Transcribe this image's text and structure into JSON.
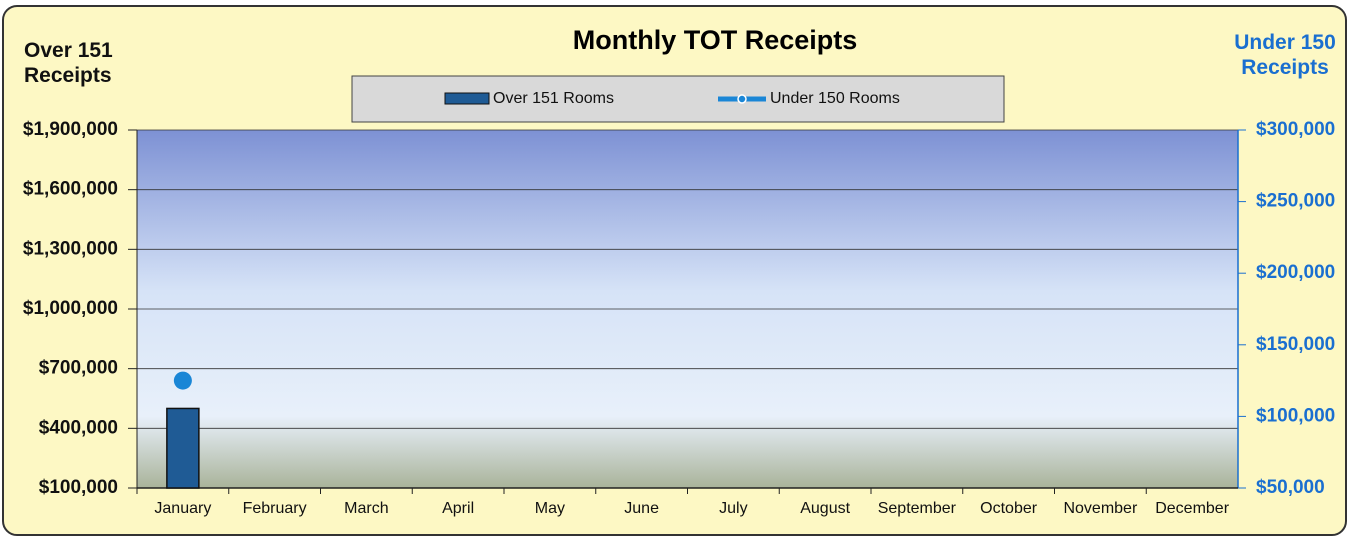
{
  "chart_data": {
    "type": "bar_line",
    "title": "Monthly TOT  Receipts",
    "ylabel": "Over 151 Receipts",
    "y2label": "Under 150 Receipts",
    "categories": [
      "January",
      "February",
      "March",
      "April",
      "May",
      "June",
      "July",
      "August",
      "September",
      "October",
      "November",
      "December"
    ],
    "series": [
      {
        "name": "Over 151 Rooms",
        "type": "bar",
        "color": "#1f5b95",
        "values": [
          500000,
          null,
          null,
          null,
          null,
          null,
          null,
          null,
          null,
          null,
          null,
          null
        ]
      },
      {
        "name": "Under 150 Rooms",
        "type": "line",
        "axis": "y2",
        "color": "#1a86d6",
        "values": [
          125000,
          null,
          null,
          null,
          null,
          null,
          null,
          null,
          null,
          null,
          null,
          null
        ]
      }
    ],
    "ylim": [
      100000,
      1900000
    ],
    "yticks": [
      {
        "value": 100000,
        "label": "$100,000"
      },
      {
        "value": 400000,
        "label": "$400,000"
      },
      {
        "value": 700000,
        "label": "$700,000"
      },
      {
        "value": 1000000,
        "label": "$1,000,000"
      },
      {
        "value": 1300000,
        "label": "$1,300,000"
      },
      {
        "value": 1600000,
        "label": "$1,600,000"
      },
      {
        "value": 1900000,
        "label": "$1,900,000"
      }
    ],
    "y2lim": [
      50000,
      300000
    ],
    "y2ticks": [
      {
        "value": 50000,
        "label": "$50,000"
      },
      {
        "value": 100000,
        "label": "$100,000"
      },
      {
        "value": 150000,
        "label": "$150,000"
      },
      {
        "value": 200000,
        "label": "$200,000"
      },
      {
        "value": 250000,
        "label": "$250,000"
      },
      {
        "value": 300000,
        "label": "$300,000"
      }
    ],
    "grid": true
  }
}
